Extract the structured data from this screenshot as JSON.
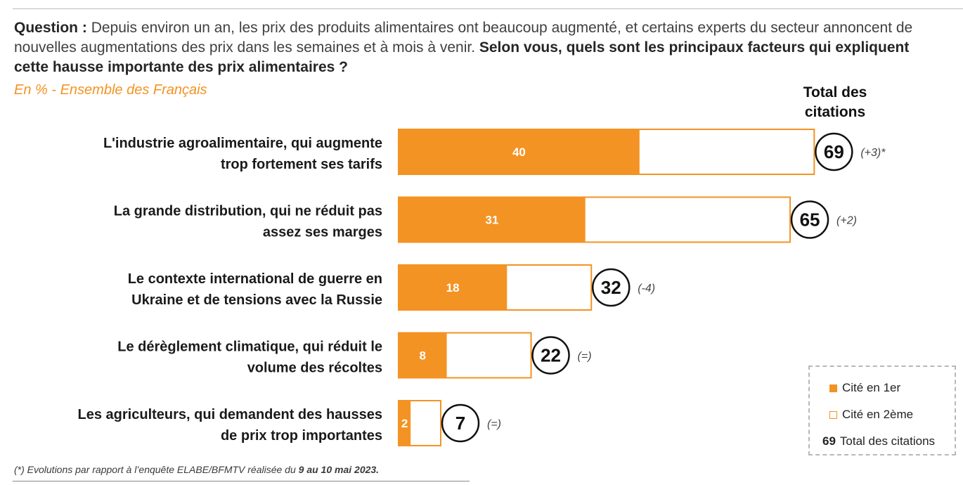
{
  "header": {
    "question_label": "Question :",
    "question_text": "Depuis environ un an, les prix des produits alimentaires ont beaucoup augmenté, et certains experts du secteur annoncent de nouvelles augmentations des prix dans les semaines et à mois à venir.",
    "question_bold": "Selon vous, quels sont les principaux facteurs qui expliquent cette hausse importante des prix alimentaires ?",
    "subtitle": "En % - Ensemble des Français",
    "total_header": "Total des citations"
  },
  "chart_data": {
    "type": "bar",
    "orientation": "horizontal",
    "stacked": true,
    "categories": [
      [
        "L'industrie agroalimentaire, qui augmente",
        "trop fortement ses tarifs"
      ],
      [
        "La grande distribution, qui ne réduit pas",
        "assez ses marges"
      ],
      [
        "Le contexte international de guerre en",
        "Ukraine et de tensions avec la Russie"
      ],
      [
        "Le dérèglement climatique, qui réduit le",
        "volume des récoltes"
      ],
      [
        "Les agriculteurs, qui demandent des hausses",
        "de prix trop importantes"
      ]
    ],
    "series": [
      {
        "name": "Cité en 1er",
        "values": [
          40,
          31,
          18,
          8,
          2
        ],
        "color": "#f39323"
      },
      {
        "name": "Cité en 2ème",
        "values": [
          29,
          34,
          14,
          14,
          5
        ],
        "color": "#ffffff"
      }
    ],
    "totals": [
      69,
      65,
      32,
      22,
      7
    ],
    "evolutions": [
      "(+3)*",
      "(+2)",
      "(-4)",
      "(=)",
      "(=)"
    ],
    "xlim": [
      0,
      69
    ],
    "legend_position": "bottom-right"
  },
  "legend": {
    "first_label": "Cité en 1er",
    "second_label": "Cité en 2ème",
    "total_number": "69",
    "total_label": "Total des citations"
  },
  "footnote": {
    "prefix": "(*) Evolutions par rapport à l’enquête ELABE/BFMTV réalisée du",
    "bold": "9 au 10 mai 2023."
  },
  "colors": {
    "accent": "#f39323",
    "text": "#1a1a1a"
  }
}
